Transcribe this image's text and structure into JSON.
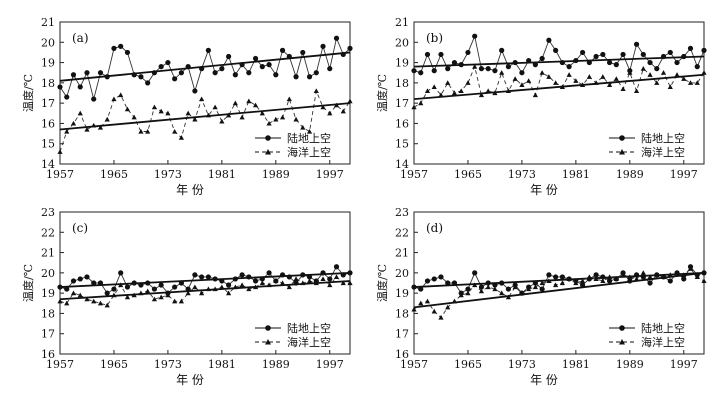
{
  "figure": {
    "ylabel": "温度/℃",
    "xlabel": "年 份"
  },
  "legend": {
    "land": "陆地上空",
    "ocean": "海洋上空"
  },
  "chart_data": [
    {
      "type": "line",
      "panel_label": "(a)",
      "ylim": [
        14,
        21
      ],
      "yticks": [
        14,
        15,
        16,
        17,
        18,
        19,
        20,
        21
      ],
      "xlim": [
        1957,
        2000
      ],
      "xticks": [
        1957,
        1965,
        1973,
        1981,
        1989,
        1997
      ],
      "ylabel": "温度/℃",
      "xlabel": "年 份",
      "legend_position": "bottom-right",
      "series": [
        {
          "name": "陆地上空",
          "marker": "circle",
          "line": "solid",
          "x": [
            1957,
            1958,
            1959,
            1960,
            1961,
            1962,
            1963,
            1964,
            1965,
            1966,
            1967,
            1968,
            1969,
            1970,
            1971,
            1972,
            1973,
            1974,
            1975,
            1976,
            1977,
            1978,
            1979,
            1980,
            1981,
            1982,
            1983,
            1984,
            1985,
            1986,
            1987,
            1988,
            1989,
            1990,
            1991,
            1992,
            1993,
            1994,
            1995,
            1996,
            1997,
            1998,
            1999,
            2000
          ],
          "values": [
            17.8,
            17.3,
            18.4,
            17.8,
            18.5,
            17.2,
            18.5,
            18.3,
            19.7,
            19.8,
            19.5,
            18.4,
            18.3,
            18.0,
            18.5,
            18.8,
            19.0,
            18.2,
            18.5,
            18.8,
            17.6,
            18.7,
            19.6,
            18.5,
            18.7,
            19.3,
            18.4,
            18.9,
            18.5,
            19.2,
            18.8,
            18.9,
            18.4,
            19.6,
            19.3,
            18.3,
            19.5,
            18.3,
            18.5,
            19.8,
            18.7,
            20.2,
            19.4,
            19.7
          ],
          "trend": [
            18.1,
            19.5
          ]
        },
        {
          "name": "海洋上空",
          "marker": "triangle",
          "line": "dashed",
          "x": [
            1957,
            1958,
            1959,
            1960,
            1961,
            1962,
            1963,
            1964,
            1965,
            1966,
            1967,
            1968,
            1969,
            1970,
            1971,
            1972,
            1973,
            1974,
            1975,
            1976,
            1977,
            1978,
            1979,
            1980,
            1981,
            1982,
            1983,
            1984,
            1985,
            1986,
            1987,
            1988,
            1989,
            1990,
            1991,
            1992,
            1993,
            1994,
            1995,
            1996,
            1997,
            1998,
            1999,
            2000
          ],
          "values": [
            14.6,
            15.6,
            16.0,
            16.5,
            15.7,
            15.9,
            15.8,
            16.2,
            17.2,
            17.4,
            16.7,
            16.3,
            15.6,
            15.6,
            16.8,
            16.6,
            16.5,
            15.6,
            15.3,
            16.5,
            16.2,
            17.2,
            16.4,
            16.8,
            16.1,
            16.4,
            17.0,
            16.3,
            17.1,
            16.9,
            16.5,
            16.0,
            16.2,
            16.3,
            17.2,
            16.2,
            15.8,
            15.6,
            17.6,
            16.8,
            16.5,
            16.9,
            16.6,
            17.1
          ],
          "trend": [
            15.7,
            17.0
          ]
        }
      ]
    },
    {
      "type": "line",
      "panel_label": "(b)",
      "ylim": [
        14,
        21
      ],
      "yticks": [
        14,
        15,
        16,
        17,
        18,
        19,
        20,
        21
      ],
      "xlim": [
        1957,
        2000
      ],
      "xticks": [
        1957,
        1965,
        1973,
        1981,
        1989,
        1997
      ],
      "ylabel": "温度/℃",
      "xlabel": "年 份",
      "legend_position": "bottom-right",
      "series": [
        {
          "name": "陆地上空",
          "marker": "circle",
          "line": "solid",
          "x": [
            1957,
            1958,
            1959,
            1960,
            1961,
            1962,
            1963,
            1964,
            1965,
            1966,
            1967,
            1968,
            1969,
            1970,
            1971,
            1972,
            1973,
            1974,
            1975,
            1976,
            1977,
            1978,
            1979,
            1980,
            1981,
            1982,
            1983,
            1984,
            1985,
            1986,
            1987,
            1988,
            1989,
            1990,
            1991,
            1992,
            1993,
            1994,
            1995,
            1996,
            1997,
            1998,
            1999,
            2000
          ],
          "values": [
            18.6,
            18.5,
            19.4,
            18.6,
            19.4,
            18.7,
            19.0,
            18.9,
            19.5,
            20.3,
            18.7,
            18.7,
            18.6,
            19.6,
            18.8,
            19.0,
            18.5,
            19.1,
            18.9,
            19.2,
            20.1,
            19.6,
            19.0,
            18.8,
            19.1,
            19.5,
            19.0,
            19.3,
            19.4,
            19.0,
            18.9,
            19.4,
            18.6,
            19.9,
            19.4,
            19.0,
            18.7,
            19.3,
            19.5,
            19.0,
            19.3,
            19.7,
            18.8,
            19.6
          ],
          "trend": [
            18.8,
            19.3
          ]
        },
        {
          "name": "海洋上空",
          "marker": "triangle",
          "line": "dashed",
          "x": [
            1957,
            1958,
            1959,
            1960,
            1961,
            1962,
            1963,
            1964,
            1965,
            1966,
            1967,
            1968,
            1969,
            1970,
            1971,
            1972,
            1973,
            1974,
            1975,
            1976,
            1977,
            1978,
            1979,
            1980,
            1981,
            1982,
            1983,
            1984,
            1985,
            1986,
            1987,
            1988,
            1989,
            1990,
            1991,
            1992,
            1993,
            1994,
            1995,
            1996,
            1997,
            1998,
            1999,
            2000
          ],
          "values": [
            16.8,
            17.0,
            17.6,
            17.8,
            17.4,
            18.0,
            17.5,
            17.6,
            18.0,
            18.8,
            17.4,
            17.6,
            17.5,
            18.5,
            17.6,
            18.2,
            17.9,
            18.1,
            17.4,
            18.5,
            18.3,
            18.0,
            17.8,
            18.4,
            18.1,
            17.9,
            18.3,
            18.0,
            18.3,
            17.9,
            18.2,
            17.7,
            18.5,
            17.6,
            18.7,
            18.4,
            18.0,
            18.5,
            17.8,
            18.4,
            18.2,
            18.0,
            18.0,
            18.5
          ],
          "trend": [
            17.2,
            18.4
          ]
        }
      ]
    },
    {
      "type": "line",
      "panel_label": "(c)",
      "ylim": [
        16,
        23
      ],
      "yticks": [
        16,
        17,
        18,
        19,
        20,
        21,
        22,
        23
      ],
      "xlim": [
        1957,
        2000
      ],
      "xticks": [
        1957,
        1965,
        1973,
        1981,
        1989,
        1997
      ],
      "ylabel": "温度/℃",
      "xlabel": "年 份",
      "legend_position": "bottom-right",
      "series": [
        {
          "name": "陆地上空",
          "marker": "circle",
          "line": "solid",
          "x": [
            1957,
            1958,
            1959,
            1960,
            1961,
            1962,
            1963,
            1964,
            1965,
            1966,
            1967,
            1968,
            1969,
            1970,
            1971,
            1972,
            1973,
            1974,
            1975,
            1976,
            1977,
            1978,
            1979,
            1980,
            1981,
            1982,
            1983,
            1984,
            1985,
            1986,
            1987,
            1988,
            1989,
            1990,
            1991,
            1992,
            1993,
            1994,
            1995,
            1996,
            1997,
            1998,
            1999,
            2000
          ],
          "values": [
            19.3,
            19.2,
            19.6,
            19.7,
            19.8,
            19.5,
            19.5,
            19.0,
            19.2,
            20.0,
            19.3,
            19.5,
            19.4,
            19.5,
            19.2,
            19.4,
            19.0,
            19.3,
            19.5,
            19.2,
            19.9,
            19.8,
            19.8,
            19.7,
            19.6,
            19.4,
            19.7,
            19.9,
            19.8,
            19.6,
            19.7,
            20.0,
            19.6,
            19.9,
            19.8,
            19.5,
            19.9,
            19.8,
            19.6,
            20.0,
            19.7,
            20.3,
            19.9,
            20.0
          ],
          "trend": [
            19.3,
            20.0
          ]
        },
        {
          "name": "海洋上空",
          "marker": "triangle",
          "line": "dashed",
          "x": [
            1957,
            1958,
            1959,
            1960,
            1961,
            1962,
            1963,
            1964,
            1965,
            1966,
            1967,
            1968,
            1969,
            1970,
            1971,
            1972,
            1973,
            1974,
            1975,
            1976,
            1977,
            1978,
            1979,
            1980,
            1981,
            1982,
            1983,
            1984,
            1985,
            1986,
            1987,
            1988,
            1989,
            1990,
            1991,
            1992,
            1993,
            1994,
            1995,
            1996,
            1997,
            1998,
            1999,
            2000
          ],
          "values": [
            18.6,
            18.5,
            19.0,
            18.9,
            18.7,
            18.6,
            18.5,
            18.4,
            18.9,
            19.4,
            18.8,
            18.9,
            19.0,
            19.1,
            18.7,
            18.8,
            18.9,
            18.6,
            18.6,
            19.0,
            19.3,
            19.0,
            19.2,
            19.2,
            19.3,
            19.0,
            19.3,
            19.4,
            19.2,
            19.3,
            19.5,
            19.4,
            19.6,
            19.5,
            19.3,
            19.7,
            19.5,
            19.6,
            19.5,
            19.7,
            19.4,
            19.8,
            19.5,
            19.5
          ],
          "trend": [
            18.7,
            19.6
          ]
        }
      ]
    },
    {
      "type": "line",
      "panel_label": "(d)",
      "ylim": [
        16,
        23
      ],
      "yticks": [
        16,
        17,
        18,
        19,
        20,
        21,
        22,
        23
      ],
      "xlim": [
        1957,
        2000
      ],
      "xticks": [
        1957,
        1965,
        1973,
        1981,
        1989,
        1997
      ],
      "ylabel": "温度/℃",
      "xlabel": "年 份",
      "legend_position": "bottom-right",
      "series": [
        {
          "name": "陆地上空",
          "marker": "circle",
          "line": "solid",
          "x": [
            1957,
            1958,
            1959,
            1960,
            1961,
            1962,
            1963,
            1964,
            1965,
            1966,
            1967,
            1968,
            1969,
            1970,
            1971,
            1972,
            1973,
            1974,
            1975,
            1976,
            1977,
            1978,
            1979,
            1980,
            1981,
            1982,
            1983,
            1984,
            1985,
            1986,
            1987,
            1988,
            1989,
            1990,
            1991,
            1992,
            1993,
            1994,
            1995,
            1996,
            1997,
            1998,
            1999,
            2000
          ],
          "values": [
            19.3,
            19.2,
            19.6,
            19.7,
            19.8,
            19.5,
            19.5,
            19.0,
            19.2,
            20.0,
            19.3,
            19.5,
            19.4,
            19.5,
            19.2,
            19.4,
            19.0,
            19.3,
            19.5,
            19.2,
            19.9,
            19.8,
            19.8,
            19.7,
            19.6,
            19.4,
            19.7,
            19.9,
            19.8,
            19.6,
            19.7,
            20.0,
            19.6,
            19.9,
            19.8,
            19.5,
            19.9,
            19.8,
            19.6,
            20.0,
            19.7,
            20.3,
            19.9,
            20.0
          ],
          "trend": [
            19.3,
            20.0
          ]
        },
        {
          "name": "海洋上空",
          "marker": "triangle",
          "line": "dashed",
          "x": [
            1957,
            1958,
            1959,
            1960,
            1961,
            1962,
            1963,
            1964,
            1965,
            1966,
            1967,
            1968,
            1969,
            1970,
            1971,
            1972,
            1973,
            1974,
            1975,
            1976,
            1977,
            1978,
            1979,
            1980,
            1981,
            1982,
            1983,
            1984,
            1985,
            1986,
            1987,
            1988,
            1989,
            1990,
            1991,
            1992,
            1993,
            1994,
            1995,
            1996,
            1997,
            1998,
            1999,
            2000
          ],
          "values": [
            18.2,
            18.5,
            18.6,
            18.1,
            17.8,
            18.3,
            18.6,
            18.9,
            19.0,
            19.4,
            19.1,
            19.3,
            19.2,
            19.0,
            18.8,
            19.3,
            19.0,
            19.2,
            19.3,
            19.5,
            19.6,
            19.4,
            19.5,
            19.7,
            19.5,
            19.6,
            19.8,
            19.7,
            19.6,
            19.8,
            19.7,
            19.9,
            19.8,
            19.7,
            20.0,
            19.8,
            19.9,
            19.8,
            19.9,
            20.0,
            19.9,
            20.2,
            19.8,
            19.6
          ],
          "trend": [
            18.3,
            20.0
          ]
        }
      ]
    }
  ]
}
